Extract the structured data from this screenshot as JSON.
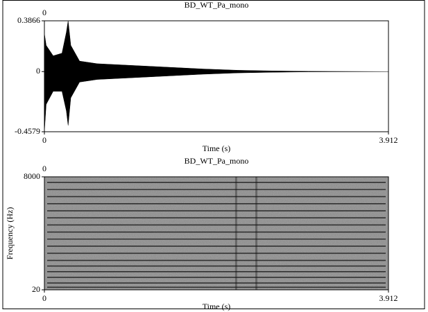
{
  "chart_data": [
    {
      "type": "waveform",
      "title": "BD_WT_Pa_mono",
      "top_xtick": 0,
      "xlabel": "Time (s)",
      "x": [
        0,
        0.02,
        0.1,
        0.2,
        0.25,
        0.27,
        0.3,
        0.4,
        0.6,
        0.9,
        1.2,
        1.5,
        1.8,
        2.2,
        2.6,
        3.0,
        3.912
      ],
      "upper": [
        0.29,
        0.2,
        0.12,
        0.14,
        0.3,
        0.3866,
        0.2,
        0.08,
        0.06,
        0.05,
        0.04,
        0.03,
        0.02,
        0.01,
        0.005,
        0.002,
        0
      ],
      "lower": [
        -0.4579,
        -0.25,
        -0.15,
        -0.15,
        -0.3,
        -0.41,
        -0.2,
        -0.08,
        -0.06,
        -0.05,
        -0.04,
        -0.03,
        -0.02,
        -0.01,
        -0.005,
        -0.002,
        0
      ],
      "color": "#000000",
      "xlim": [
        0,
        3.912
      ],
      "xticks": [
        0,
        3.912
      ],
      "ylim": [
        -0.4579,
        0.3866
      ],
      "yticks": [
        -0.4579,
        0,
        0.3866
      ]
    },
    {
      "type": "spectrogram",
      "title": "BD_WT_Pa_mono",
      "top_xtick": 0,
      "xlabel": "Time (s)",
      "ylabel": "Frequency (Hz)",
      "bands": [
        7600,
        7100,
        6600,
        6100,
        5600,
        5100,
        4600,
        4100,
        3600,
        3100,
        2600,
        2100,
        1700,
        1300,
        900,
        500,
        200
      ],
      "events": [
        2.18,
        2.41
      ],
      "color": "#111111",
      "xlim": [
        0,
        3.912
      ],
      "xticks": [
        0,
        3.912
      ],
      "ylim": [
        20,
        8000
      ],
      "yticks": [
        20,
        8000
      ]
    }
  ]
}
